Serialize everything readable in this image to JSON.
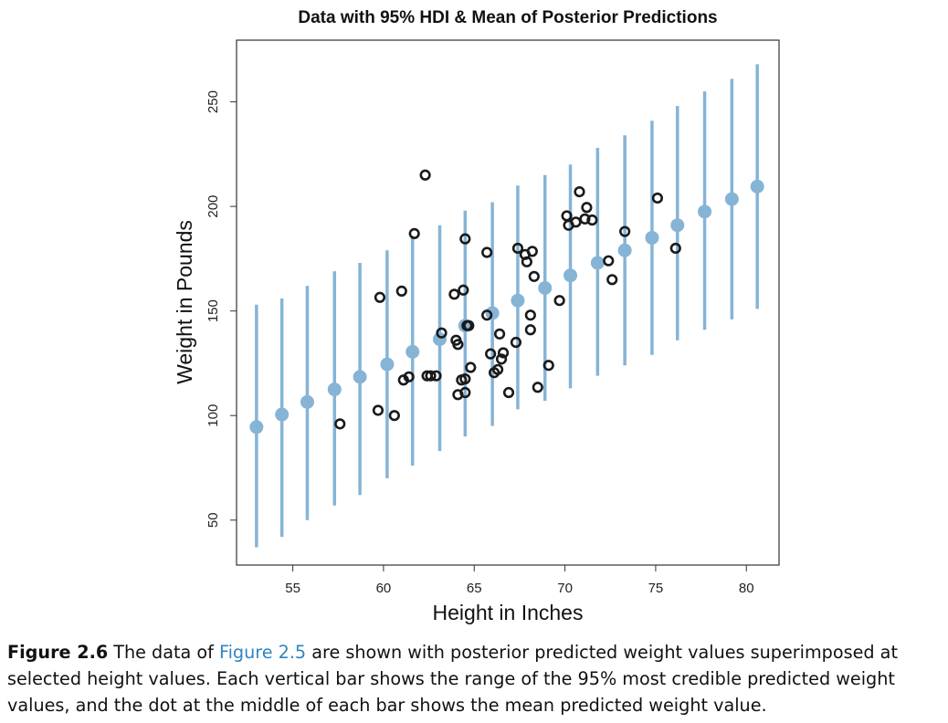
{
  "chart_data": {
    "type": "scatter",
    "title": "Data with 95% HDI & Mean of Posterior Predictions",
    "xlabel": "Height in Inches",
    "ylabel": "Weight in Pounds",
    "xlim": [
      51.9,
      81.8
    ],
    "ylim": [
      28.5,
      279.5
    ],
    "xticks": [
      55,
      60,
      65,
      70,
      75,
      80
    ],
    "yticks": [
      50,
      100,
      150,
      200,
      250
    ],
    "grid": false,
    "colors": {
      "hdi": "#86b4d6",
      "data_points": "#1a1a1a",
      "frame": "#333333"
    },
    "hdi_bars": [
      {
        "x": 53.0,
        "low": 37,
        "high": 153,
        "mean": 94.5
      },
      {
        "x": 54.4,
        "low": 42,
        "high": 156,
        "mean": 100.5
      },
      {
        "x": 55.8,
        "low": 50,
        "high": 162,
        "mean": 106.5
      },
      {
        "x": 57.3,
        "low": 57,
        "high": 169,
        "mean": 112.5
      },
      {
        "x": 58.7,
        "low": 62,
        "high": 173,
        "mean": 118.5
      },
      {
        "x": 60.2,
        "low": 70,
        "high": 179,
        "mean": 124.5
      },
      {
        "x": 61.6,
        "low": 76,
        "high": 186,
        "mean": 130.5
      },
      {
        "x": 63.1,
        "low": 83,
        "high": 191,
        "mean": 136.5
      },
      {
        "x": 64.5,
        "low": 90,
        "high": 198,
        "mean": 143
      },
      {
        "x": 66.0,
        "low": 95,
        "high": 202,
        "mean": 149
      },
      {
        "x": 67.4,
        "low": 103,
        "high": 210,
        "mean": 155
      },
      {
        "x": 68.9,
        "low": 107,
        "high": 215,
        "mean": 161
      },
      {
        "x": 70.3,
        "low": 113,
        "high": 220,
        "mean": 167
      },
      {
        "x": 71.8,
        "low": 119,
        "high": 228,
        "mean": 173
      },
      {
        "x": 73.3,
        "low": 124,
        "high": 234,
        "mean": 179
      },
      {
        "x": 74.8,
        "low": 129,
        "high": 241,
        "mean": 185
      },
      {
        "x": 76.2,
        "low": 136,
        "high": 248,
        "mean": 191
      },
      {
        "x": 77.7,
        "low": 141,
        "high": 255,
        "mean": 197.5
      },
      {
        "x": 79.2,
        "low": 146,
        "high": 261,
        "mean": 203.5
      },
      {
        "x": 80.6,
        "low": 151,
        "high": 268,
        "mean": 209.5
      }
    ],
    "data_points": [
      [
        57.6,
        96
      ],
      [
        59.7,
        102.5
      ],
      [
        60.6,
        100
      ],
      [
        59.8,
        156.5
      ],
      [
        61.0,
        159.5
      ],
      [
        61.1,
        117
      ],
      [
        61.4,
        118.5
      ],
      [
        61.7,
        187
      ],
      [
        62.3,
        215
      ],
      [
        62.4,
        119
      ],
      [
        62.6,
        119
      ],
      [
        62.9,
        119
      ],
      [
        63.2,
        139.5
      ],
      [
        63.9,
        158
      ],
      [
        64.0,
        136
      ],
      [
        64.1,
        134
      ],
      [
        64.1,
        110
      ],
      [
        64.3,
        117
      ],
      [
        64.4,
        160
      ],
      [
        64.5,
        117.5
      ],
      [
        64.5,
        111
      ],
      [
        64.5,
        184.5
      ],
      [
        64.6,
        143
      ],
      [
        64.7,
        143
      ],
      [
        64.8,
        123
      ],
      [
        65.7,
        148
      ],
      [
        65.7,
        178
      ],
      [
        65.9,
        129.5
      ],
      [
        66.1,
        120.5
      ],
      [
        66.3,
        122
      ],
      [
        66.4,
        139
      ],
      [
        66.5,
        127
      ],
      [
        66.6,
        130
      ],
      [
        66.9,
        111
      ],
      [
        67.3,
        135
      ],
      [
        67.4,
        180
      ],
      [
        67.8,
        177
      ],
      [
        67.9,
        173.5
      ],
      [
        68.1,
        148
      ],
      [
        68.1,
        141
      ],
      [
        68.2,
        178.5
      ],
      [
        68.3,
        166.5
      ],
      [
        68.5,
        113.5
      ],
      [
        69.1,
        124
      ],
      [
        69.7,
        155
      ],
      [
        70.1,
        195.5
      ],
      [
        70.2,
        191
      ],
      [
        70.6,
        192.5
      ],
      [
        70.8,
        207
      ],
      [
        71.1,
        194
      ],
      [
        71.2,
        199.5
      ],
      [
        71.5,
        193.5
      ],
      [
        72.4,
        174
      ],
      [
        72.6,
        165
      ],
      [
        73.3,
        188
      ],
      [
        75.1,
        204
      ],
      [
        76.1,
        180
      ]
    ]
  },
  "caption": {
    "figure_number": "Figure 2.6",
    "text_before_link": "The data of ",
    "link_text": "Figure 2.5",
    "text_after_link": " are shown with posterior predicted weight values superimposed at selected height values. Each vertical bar shows the range of the 95% most credible predicted weight values, and the dot at the middle of each bar shows the mean predicted weight value."
  }
}
